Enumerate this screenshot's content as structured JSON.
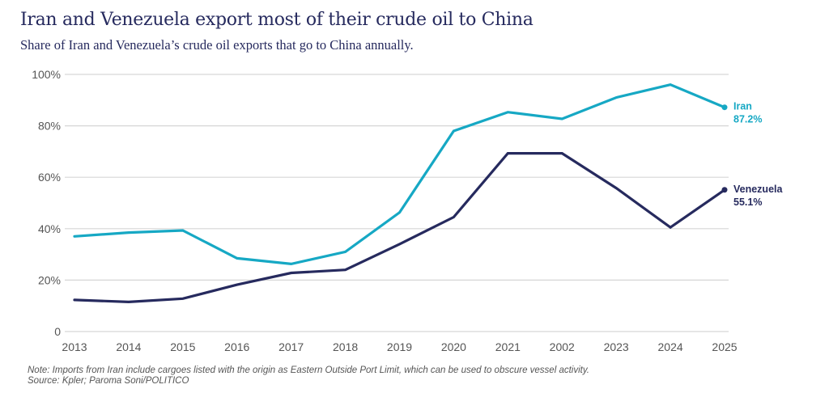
{
  "chart_data": {
    "type": "line",
    "title": "Iran and Venezuela export most of their crude oil to China",
    "subtitle": "Share of Iran and Venezuela’s crude oil exports that go to China annually.",
    "xlabel": "",
    "ylabel": "",
    "x": [
      "2013",
      "2014",
      "2015",
      "2016",
      "2017",
      "2018",
      "2019",
      "2020",
      "2021",
      "2002",
      "2023",
      "2024",
      "2025"
    ],
    "ylim": [
      0,
      100
    ],
    "yticks": [
      0,
      20,
      40,
      60,
      80,
      100
    ],
    "ytick_labels": [
      "0",
      "20%",
      "40%",
      "60%",
      "80%",
      "100%"
    ],
    "grid": true,
    "series": [
      {
        "name": "Iran",
        "color": "#16a8c4",
        "values": [
          37,
          38.5,
          39.3,
          28.5,
          26.3,
          31,
          46.3,
          78,
          85.3,
          82.7,
          91,
          96,
          87.2
        ],
        "end_label": "Iran",
        "end_value_label": "87.2%"
      },
      {
        "name": "Venezuela",
        "color": "#262a5e",
        "values": [
          12.3,
          11.5,
          12.8,
          18.2,
          22.8,
          24,
          34,
          44.5,
          69.3,
          69.3,
          55.8,
          40.5,
          55.1
        ],
        "end_label": "Venezuela",
        "end_value_label": "55.1%"
      }
    ],
    "legend": "direct-labels-right"
  },
  "footer": {
    "note": "Note: Imports from Iran include cargoes listed with the origin as Eastern Outside Port Limit, which can be used to obscure vessel activity.",
    "source": "Source: Kpler; Paroma Soni/POLITICO"
  }
}
